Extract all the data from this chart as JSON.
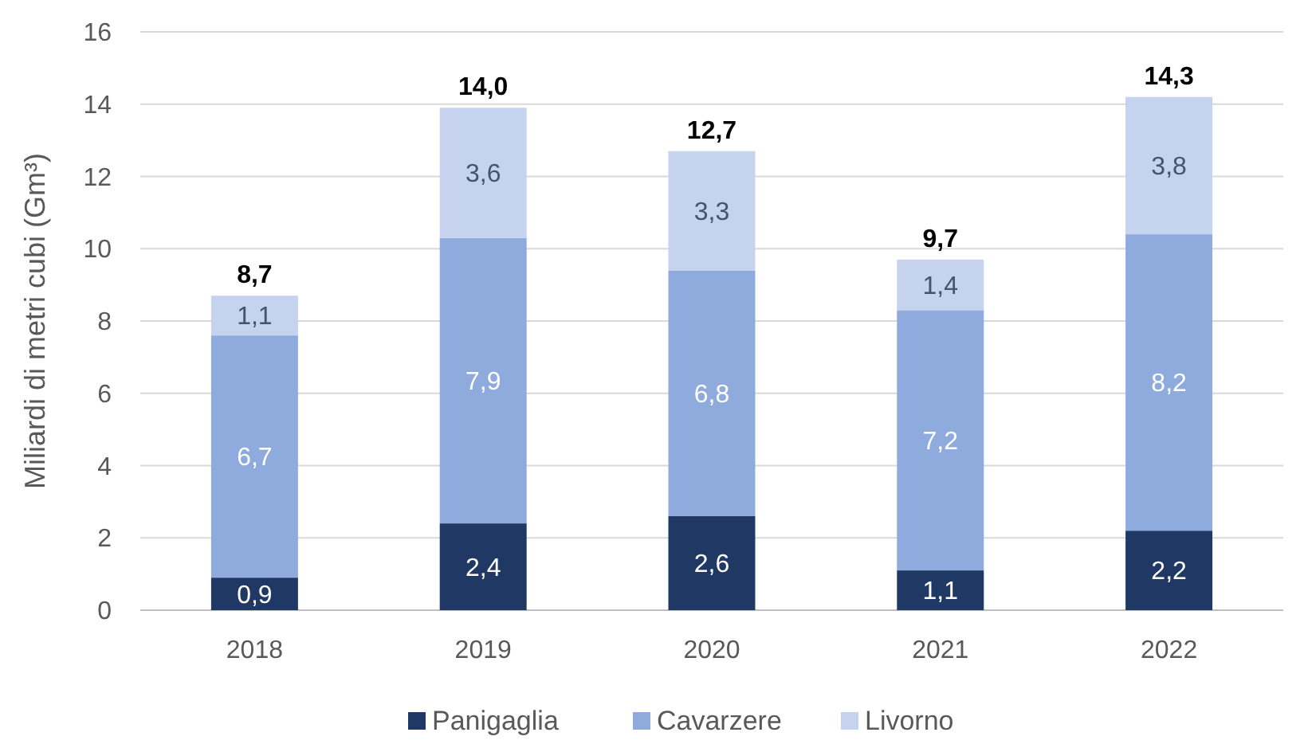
{
  "chart_data": {
    "type": "bar",
    "stacked": true,
    "ylabel": "Miliardi di metri cubi (Gm³)",
    "categories": [
      "2018",
      "2019",
      "2020",
      "2021",
      "2022"
    ],
    "ylim": [
      0,
      16
    ],
    "yticks": [
      0,
      2,
      4,
      6,
      8,
      10,
      12,
      14,
      16
    ],
    "grid": "y",
    "legend": "bottom",
    "series": [
      {
        "name": "Panigaglia",
        "color": "#203864",
        "values": [
          0.9,
          2.4,
          2.6,
          1.1,
          2.2
        ],
        "value_labels": [
          "0,9",
          "2,4",
          "2,6",
          "1,1",
          "2,2"
        ]
      },
      {
        "name": "Cavarzere",
        "color": "#8faadc",
        "values": [
          6.7,
          7.9,
          6.8,
          7.2,
          8.2
        ],
        "value_labels": [
          "6,7",
          "7,9",
          "6,8",
          "7,2",
          "8,2"
        ]
      },
      {
        "name": "Livorno",
        "color": "#c5d3ee",
        "values": [
          1.1,
          3.6,
          3.3,
          1.4,
          3.8
        ],
        "value_labels": [
          "1,1",
          "3,6",
          "3,3",
          "1,4",
          "3,8"
        ]
      }
    ],
    "totals": [
      "8,7",
      "14,0",
      "12,7",
      "9,7",
      "14,3"
    ]
  }
}
